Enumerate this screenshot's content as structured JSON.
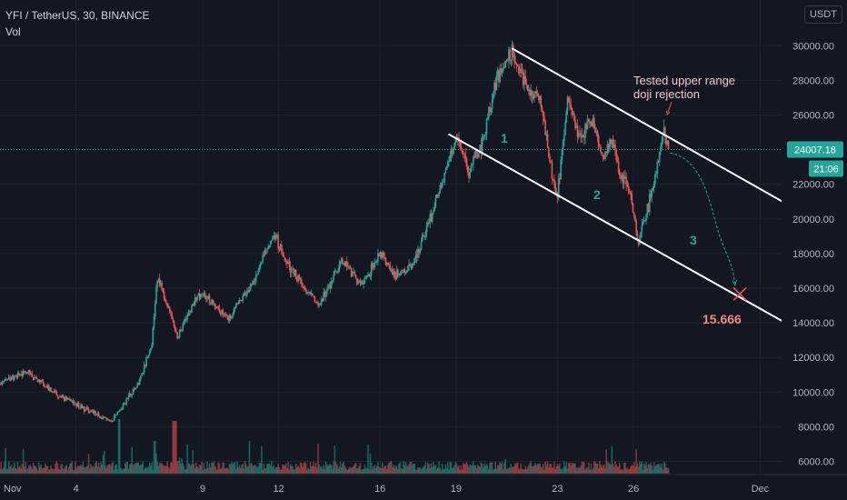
{
  "legend": {
    "symbol_line": "YFI / TetherUS, 30, BINANCE",
    "volume_label": "Vol"
  },
  "currency_button": "USDT",
  "price_scale": {
    "ticks": [
      6000,
      8000,
      10000,
      12000,
      14000,
      16000,
      18000,
      20000,
      22000,
      24000,
      26000,
      28000,
      30000
    ],
    "tick_labels": [
      "6000.00",
      "8000.00",
      "10000.00",
      "12000.00",
      "14000.00",
      "16000.00",
      "18000.00",
      "20000.00",
      "22000.00",
      "24000.00",
      "26000.00",
      "28000.00",
      "30000.00"
    ],
    "current_price_label": "24007.18",
    "countdown_label": "21:06",
    "badge_color": "#26a69a"
  },
  "time_axis": {
    "labels": [
      {
        "text": "Nov",
        "day": 0
      },
      {
        "text": "4",
        "day": 3
      },
      {
        "text": "9",
        "day": 8
      },
      {
        "text": "12",
        "day": 11
      },
      {
        "text": "16",
        "day": 15
      },
      {
        "text": "19",
        "day": 18
      },
      {
        "text": "23",
        "day": 22
      },
      {
        "text": "26",
        "day": 25
      },
      {
        "text": "Dec",
        "day": 30
      }
    ]
  },
  "annotations": {
    "callout_line1": "Tested upper range",
    "callout_line2": "doji rejection",
    "wave_1": "1",
    "wave_2": "2",
    "wave_3": "3",
    "target_label": "15.666"
  },
  "colors": {
    "up": "#26a69a",
    "down": "#ef5350",
    "channel": "#ffffff",
    "callout": "#f5c6c6",
    "target": "#ef8a80",
    "background": "#131722",
    "grid": "#1e222d"
  },
  "chart_data": {
    "type": "candlestick",
    "title": "YFI / TetherUS, 30, BINANCE",
    "ylim": [
      5000,
      32000
    ],
    "x_unit": "days since Nov 1",
    "y_unit": "USDT",
    "waypoints": [
      [
        0,
        10500
      ],
      [
        1,
        11200
      ],
      [
        1.5,
        10700
      ],
      [
        2,
        10100
      ],
      [
        3,
        9300
      ],
      [
        3.8,
        8700
      ],
      [
        4.4,
        8300
      ],
      [
        5,
        9500
      ],
      [
        5.5,
        10600
      ],
      [
        6.0,
        12800
      ],
      [
        6.2,
        16800
      ],
      [
        6.6,
        15000
      ],
      [
        7,
        13100
      ],
      [
        7.5,
        14800
      ],
      [
        8,
        15800
      ],
      [
        9,
        14200
      ],
      [
        10,
        16400
      ],
      [
        10.8,
        19200
      ],
      [
        11.2,
        17800
      ],
      [
        12,
        16000
      ],
      [
        12.6,
        15000
      ],
      [
        13.5,
        17600
      ],
      [
        14.3,
        16100
      ],
      [
        15,
        18100
      ],
      [
        15.6,
        16700
      ],
      [
        16.3,
        17300
      ],
      [
        17,
        20100
      ],
      [
        17.5,
        22300
      ],
      [
        18,
        24800
      ],
      [
        18.5,
        22800
      ],
      [
        19,
        24200
      ],
      [
        19.6,
        28100
      ],
      [
        20.2,
        29600
      ],
      [
        20.8,
        27500
      ],
      [
        21.3,
        26900
      ],
      [
        21.8,
        22500
      ],
      [
        22.0,
        21300
      ],
      [
        22.4,
        26700
      ],
      [
        22.9,
        24500
      ],
      [
        23.3,
        25900
      ],
      [
        23.8,
        23700
      ],
      [
        24.1,
        24500
      ],
      [
        24.5,
        22600
      ],
      [
        24.9,
        21200
      ],
      [
        25.2,
        18600
      ],
      [
        25.5,
        20200
      ],
      [
        25.9,
        22700
      ],
      [
        26.2,
        25000
      ],
      [
        26.4,
        24000
      ]
    ],
    "channel_upper": {
      "start": {
        "day": 20.2,
        "price": 29850
      },
      "end": {
        "day": 31.0,
        "price": 20900
      }
    },
    "channel_lower": {
      "start": {
        "day": 17.7,
        "price": 24900
      },
      "end": {
        "day": 31.0,
        "price": 14000
      }
    },
    "projection_target": 15666,
    "current_price": 24007.18
  }
}
